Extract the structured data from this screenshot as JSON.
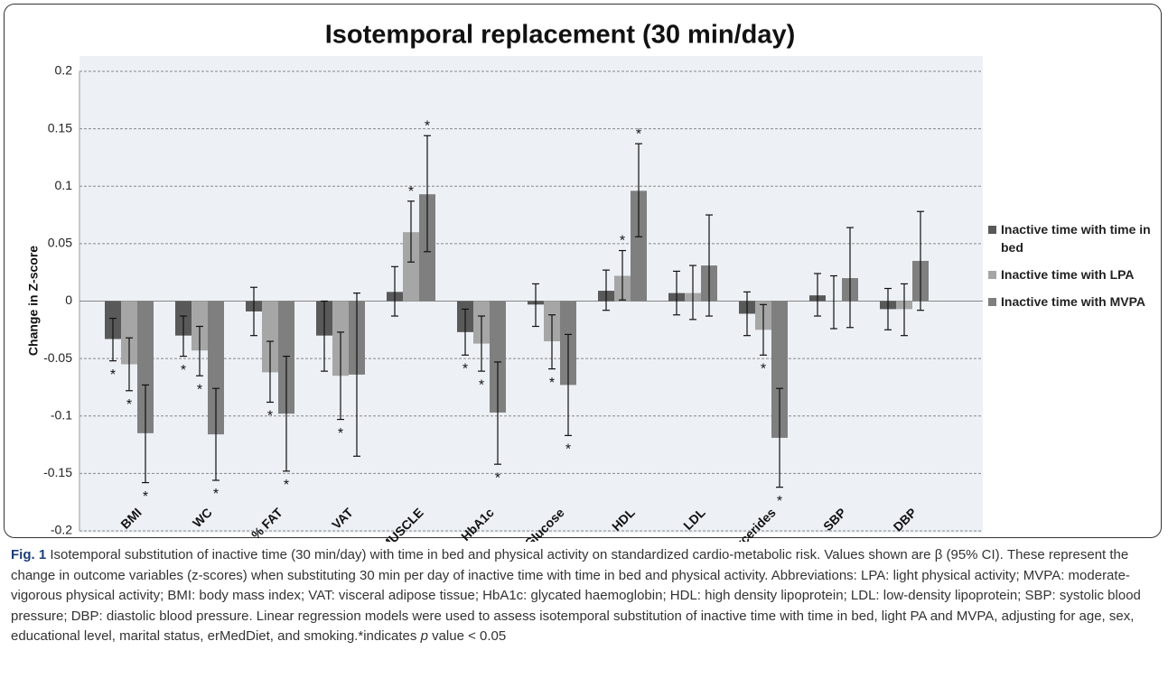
{
  "chart_data": {
    "type": "bar",
    "title": "Isotemporal replacement (30 min/day)",
    "y_label": "Change in Z-score",
    "categories": [
      "BMI",
      "WC",
      "% FAT",
      "VAT",
      "% MUSCLE",
      "HbA1c",
      "Glucose",
      "HDL",
      "LDL",
      "Triglycerides",
      "SBP",
      "DBP"
    ],
    "series": [
      {
        "name": "Inactive time with time in bed",
        "color": "#595959",
        "values": [
          -0.033,
          -0.03,
          -0.009,
          -0.03,
          0.008,
          -0.027,
          -0.003,
          0.009,
          0.007,
          -0.011,
          0.005,
          -0.007
        ],
        "ci_low": [
          -0.052,
          -0.048,
          -0.03,
          -0.061,
          -0.013,
          -0.047,
          -0.022,
          -0.008,
          -0.012,
          -0.03,
          -0.013,
          -0.025
        ],
        "ci_high": [
          -0.015,
          -0.013,
          0.012,
          0.0,
          0.03,
          -0.007,
          0.015,
          0.027,
          0.026,
          0.008,
          0.024,
          0.011
        ],
        "significant": [
          true,
          true,
          false,
          false,
          false,
          true,
          false,
          false,
          false,
          false,
          false,
          false
        ]
      },
      {
        "name": "Inactive time with LPA",
        "color": "#a6a6a6",
        "values": [
          -0.055,
          -0.043,
          -0.062,
          -0.065,
          0.06,
          -0.037,
          -0.035,
          0.022,
          0.007,
          -0.025,
          0.0,
          -0.007
        ],
        "ci_low": [
          -0.078,
          -0.065,
          -0.088,
          -0.103,
          0.034,
          -0.061,
          -0.059,
          0.001,
          -0.016,
          -0.047,
          -0.024,
          -0.03
        ],
        "ci_high": [
          -0.032,
          -0.022,
          -0.035,
          -0.027,
          0.087,
          -0.013,
          -0.012,
          0.044,
          0.031,
          -0.003,
          0.022,
          0.015
        ],
        "significant": [
          true,
          true,
          true,
          true,
          true,
          true,
          true,
          true,
          false,
          true,
          false,
          false
        ]
      },
      {
        "name": "Inactive time with MVPA",
        "color": "#7f7f7f",
        "values": [
          -0.115,
          -0.116,
          -0.098,
          -0.064,
          0.093,
          -0.097,
          -0.073,
          0.096,
          0.031,
          -0.119,
          0.02,
          0.035
        ],
        "ci_low": [
          -0.158,
          -0.156,
          -0.148,
          -0.135,
          0.043,
          -0.142,
          -0.117,
          0.056,
          -0.013,
          -0.162,
          -0.023,
          -0.008
        ],
        "ci_high": [
          -0.073,
          -0.076,
          -0.048,
          0.007,
          0.144,
          -0.053,
          -0.029,
          0.137,
          0.075,
          -0.076,
          0.064,
          0.078
        ],
        "significant": [
          true,
          true,
          true,
          false,
          true,
          true,
          true,
          true,
          false,
          true,
          false,
          false
        ]
      }
    ],
    "significance_marker": "*",
    "ylim": [
      -0.2,
      0.2
    ],
    "yticks": [
      -0.2,
      -0.15,
      -0.1,
      -0.05,
      0,
      0.05,
      0.1,
      0.15,
      0.2
    ],
    "grid": true,
    "legend": "right"
  },
  "caption": {
    "label": "Fig. 1",
    "text": " Isotemporal substitution of inactive time (30 min/day) with time in bed and physical activity on standardized cardio-metabolic risk. Values shown are β (95% CI). These represent the change in outcome variables (z-scores) when substituting 30 min per day of inactive time with time in bed and physical activity. Abbreviations: LPA: light physical activity; MVPA: moderate-vigorous physical activity; BMI: body mass index; VAT: visceral adipose tissue; HbA1c: glycated haemoglobin; HDL: high density lipoprotein; LDL: low-density lipoprotein; SBP: systolic blood pressure; DBP: diastolic blood pressure. Linear regression models were used to assess isotemporal substitution of inactive time with time in bed, light PA and MVPA, adjusting for age, sex, educational level, marital status, erMedDiet, and smoking.*indicates ",
    "italic": "p",
    "tail": " value < 0.05"
  }
}
